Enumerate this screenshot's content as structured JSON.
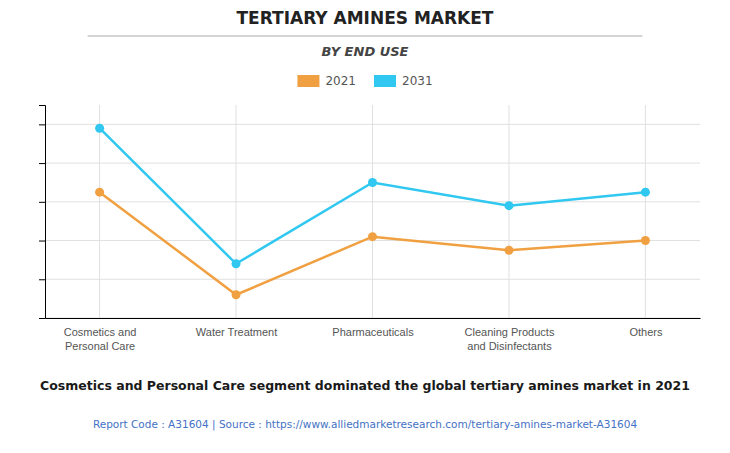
{
  "chart_data": {
    "type": "line",
    "title": "TERTIARY AMINES MARKET",
    "subtitle": "BY END USE",
    "categories": [
      "Cosmetics and\nPersonal Care",
      "Water Treatment",
      "Pharmaceuticals",
      "Cleaning Products\nand Disinfectants",
      "Others"
    ],
    "series": [
      {
        "name": "2021",
        "color": "#F0A040",
        "marker": "circle",
        "values": [
          6.5,
          1.2,
          4.2,
          3.5,
          4.0
        ]
      },
      {
        "name": "2031",
        "color": "#30C8F0",
        "marker": "circle",
        "values": [
          9.8,
          2.8,
          7.0,
          5.8,
          6.5
        ]
      }
    ],
    "ylim": [
      0,
      11
    ],
    "yticks": [
      0,
      2,
      4,
      6,
      8,
      10
    ],
    "tick_labels": "x",
    "grid": true,
    "legend": "top",
    "annotations": [
      "Cosmetics and Personal Care segment dominated the global tertiary amines market in 2021",
      "Report Code : A31604  |  Source : https://www.alliedmarketresearch.com/tertiary-amines-market-A31604"
    ]
  }
}
